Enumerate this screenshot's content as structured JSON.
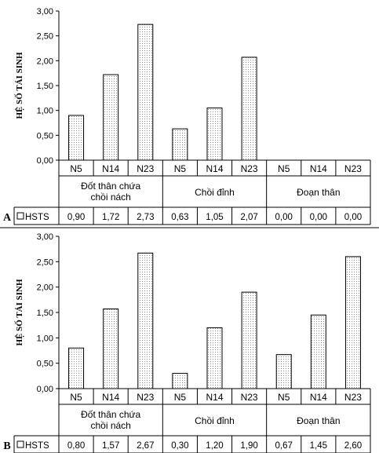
{
  "chart_data": [
    {
      "type": "bar",
      "panel_label": "A",
      "ylabel": "HỆ SỐ TÁI SINH",
      "ylim": [
        0,
        3
      ],
      "yticks": [
        "0,00",
        "0,50",
        "1,00",
        "1,50",
        "2,00",
        "2,50",
        "3,00"
      ],
      "groups": [
        {
          "label_lines": [
            "Đốt thân chứa",
            "chồi nách"
          ],
          "categories": [
            "N5",
            "N14",
            "N23"
          ],
          "values": [
            0.9,
            1.72,
            2.73
          ],
          "labels": [
            "0,90",
            "1,72",
            "2,73"
          ]
        },
        {
          "label_lines": [
            "Chồi đỉnh"
          ],
          "categories": [
            "N5",
            "N14",
            "N23"
          ],
          "values": [
            0.63,
            1.05,
            2.07
          ],
          "labels": [
            "0,63",
            "1,05",
            "2,07"
          ]
        },
        {
          "label_lines": [
            "Đoạn thân"
          ],
          "categories": [
            "N5",
            "N14",
            "N23"
          ],
          "values": [
            0.0,
            0.0,
            0.0
          ],
          "labels": [
            "0,00",
            "0,00",
            "0,00"
          ]
        }
      ],
      "legend": "HSTS",
      "grid": false
    },
    {
      "type": "bar",
      "panel_label": "B",
      "ylabel": "HỆ SỐ TÁI SINH",
      "ylim": [
        0,
        3
      ],
      "yticks": [
        "0,00",
        "0,50",
        "1,00",
        "1,50",
        "2,00",
        "2,50",
        "3,00"
      ],
      "groups": [
        {
          "label_lines": [
            "Đốt thân chứa",
            "chồi nách"
          ],
          "categories": [
            "N5",
            "N14",
            "N23"
          ],
          "values": [
            0.8,
            1.57,
            2.67
          ],
          "labels": [
            "0,80",
            "1,57",
            "2,67"
          ]
        },
        {
          "label_lines": [
            "Chồi đỉnh"
          ],
          "categories": [
            "N5",
            "N14",
            "N23"
          ],
          "values": [
            0.3,
            1.2,
            1.9
          ],
          "labels": [
            "0,30",
            "1,20",
            "1,90"
          ]
        },
        {
          "label_lines": [
            "Đoạn thân"
          ],
          "categories": [
            "N5",
            "N14",
            "N23"
          ],
          "values": [
            0.67,
            1.45,
            2.6
          ],
          "labels": [
            "0,67",
            "1,45",
            "2,60"
          ]
        }
      ],
      "legend": "HSTS",
      "grid": false
    }
  ]
}
